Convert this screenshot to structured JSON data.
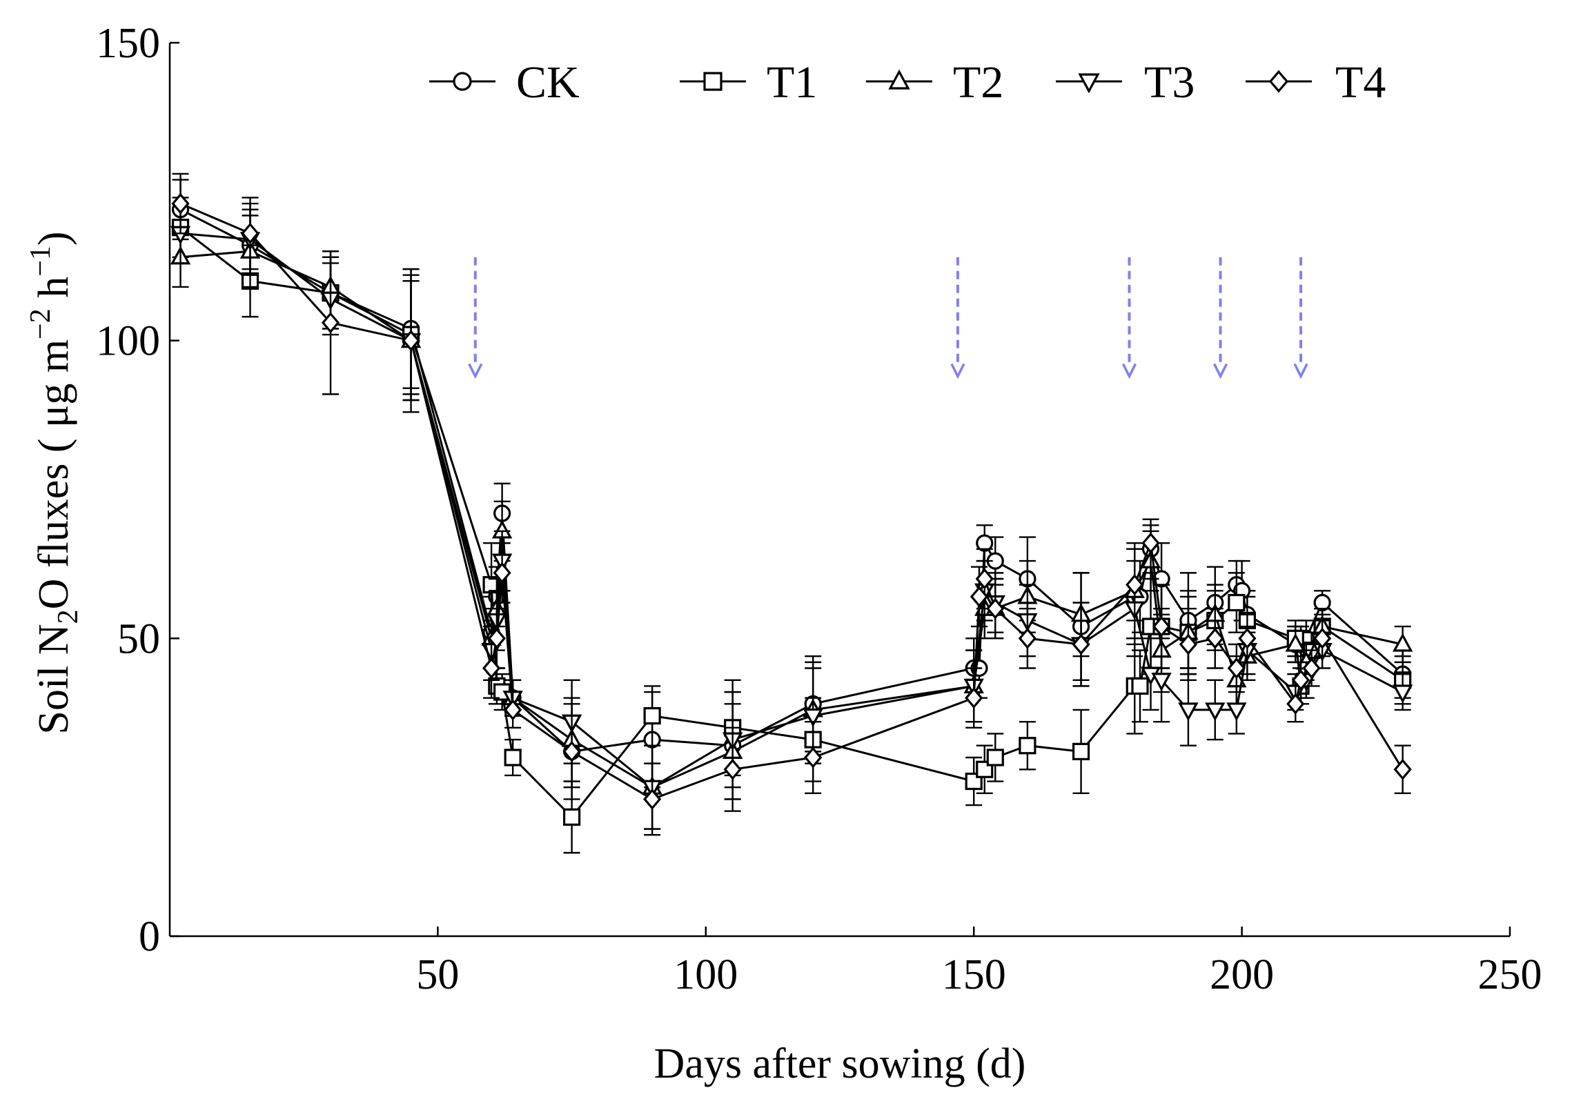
{
  "chart_data": {
    "type": "line",
    "title": "",
    "xlabel": "Days after sowing (d)",
    "ylabel_parts": {
      "prefix": "Soil N",
      "sub": "2",
      "mid": "O fluxes ( μg m",
      "sup1": "−2",
      "h": " h",
      "sup2": "−1",
      "end": ")"
    },
    "xlim": [
      0,
      250
    ],
    "ylim": [
      0,
      150
    ],
    "xticks": [
      50,
      100,
      150,
      200,
      250
    ],
    "yticks": [
      0,
      50,
      100,
      150
    ],
    "arrow_days": [
      57,
      147,
      179,
      196,
      211
    ],
    "arrow_color": "#8080f0",
    "legend_position": "top",
    "series": [
      {
        "name": "CK",
        "marker": "circle",
        "x": [
          2,
          15,
          30,
          45,
          60,
          61,
          62,
          64,
          75,
          90,
          105,
          120,
          150,
          151,
          152,
          154,
          160,
          170,
          180,
          181,
          183,
          185,
          190,
          195,
          199,
          200,
          201,
          210,
          211,
          212,
          215,
          230
        ],
        "y": [
          122,
          116,
          108,
          102,
          51,
          57,
          71,
          40,
          31,
          33,
          32,
          39,
          45,
          45,
          66,
          63,
          60,
          52,
          57,
          57,
          65,
          60,
          53,
          56,
          59,
          58,
          54,
          49,
          49,
          50,
          56,
          44
        ],
        "err": [
          5,
          6,
          6,
          10,
          6,
          5,
          5,
          3,
          8,
          8,
          9,
          8,
          5,
          5,
          3,
          4,
          7,
          9,
          8,
          6,
          4,
          6,
          8,
          6,
          4,
          5,
          4,
          3,
          3,
          3,
          2,
          4
        ]
      },
      {
        "name": "T1",
        "marker": "square",
        "x": [
          2,
          15,
          30,
          45,
          60,
          61,
          62,
          64,
          75,
          90,
          105,
          120,
          150,
          152,
          154,
          160,
          170,
          180,
          181,
          183,
          185,
          190,
          195,
          199,
          201,
          210,
          211,
          213,
          215,
          230
        ],
        "y": [
          119,
          110,
          108,
          101,
          59,
          42,
          41,
          30,
          20,
          37,
          35,
          33,
          26,
          28,
          30,
          32,
          31,
          42,
          42,
          52,
          52,
          51,
          53,
          56,
          53,
          50,
          42,
          48,
          52,
          43
        ],
        "err": [
          5,
          6,
          6,
          10,
          7,
          3,
          3,
          3,
          6,
          5,
          8,
          7,
          4,
          4,
          4,
          4,
          7,
          8,
          6,
          8,
          7,
          6,
          5,
          5,
          4,
          3,
          3,
          3,
          3,
          4
        ]
      },
      {
        "name": "T2",
        "marker": "triangle-up",
        "x": [
          2,
          15,
          30,
          45,
          60,
          61,
          62,
          64,
          75,
          90,
          105,
          120,
          150,
          152,
          154,
          160,
          170,
          180,
          183,
          185,
          190,
          195,
          199,
          201,
          210,
          212,
          215,
          230
        ],
        "y": [
          114,
          115,
          109,
          100,
          50,
          55,
          68,
          40,
          33,
          25,
          31,
          38,
          42,
          55,
          55,
          57,
          54,
          58,
          63,
          48,
          51,
          54,
          43,
          47,
          49,
          46,
          52,
          49
        ],
        "err": [
          5,
          6,
          6,
          10,
          5,
          5,
          5,
          3,
          7,
          7,
          8,
          8,
          6,
          5,
          5,
          6,
          7,
          8,
          5,
          7,
          7,
          5,
          4,
          4,
          3,
          3,
          3,
          3
        ]
      },
      {
        "name": "T3",
        "marker": "triangle-down",
        "x": [
          2,
          15,
          30,
          45,
          60,
          61,
          62,
          64,
          75,
          90,
          105,
          120,
          150,
          152,
          154,
          160,
          170,
          180,
          183,
          185,
          190,
          195,
          199,
          201,
          210,
          212,
          215,
          230
        ],
        "y": [
          118,
          117,
          107,
          100,
          48,
          53,
          63,
          40,
          36,
          25,
          33,
          37,
          42,
          58,
          56,
          53,
          49,
          55,
          44,
          43,
          38,
          38,
          38,
          48,
          41,
          43,
          48,
          41
        ],
        "err": [
          5,
          6,
          6,
          10,
          5,
          5,
          5,
          3,
          7,
          7,
          8,
          8,
          6,
          5,
          5,
          6,
          7,
          8,
          6,
          7,
          6,
          5,
          4,
          4,
          3,
          3,
          3,
          3
        ]
      },
      {
        "name": "T4",
        "marker": "diamond",
        "x": [
          2,
          15,
          30,
          45,
          60,
          61,
          62,
          64,
          75,
          90,
          105,
          120,
          150,
          151,
          152,
          154,
          160,
          170,
          180,
          183,
          185,
          190,
          195,
          199,
          201,
          210,
          211,
          213,
          215,
          230
        ],
        "y": [
          123,
          118,
          103,
          100,
          45,
          50,
          61,
          38,
          31,
          23,
          28,
          30,
          40,
          57,
          60,
          55,
          50,
          49,
          59,
          66,
          52,
          49,
          50,
          45,
          50,
          39,
          43,
          45,
          50,
          28
        ],
        "err": [
          5,
          6,
          12,
          12,
          5,
          5,
          5,
          3,
          6,
          6,
          7,
          6,
          5,
          5,
          5,
          5,
          5,
          7,
          6,
          4,
          7,
          6,
          5,
          4,
          4,
          3,
          3,
          3,
          3,
          4
        ]
      }
    ]
  }
}
